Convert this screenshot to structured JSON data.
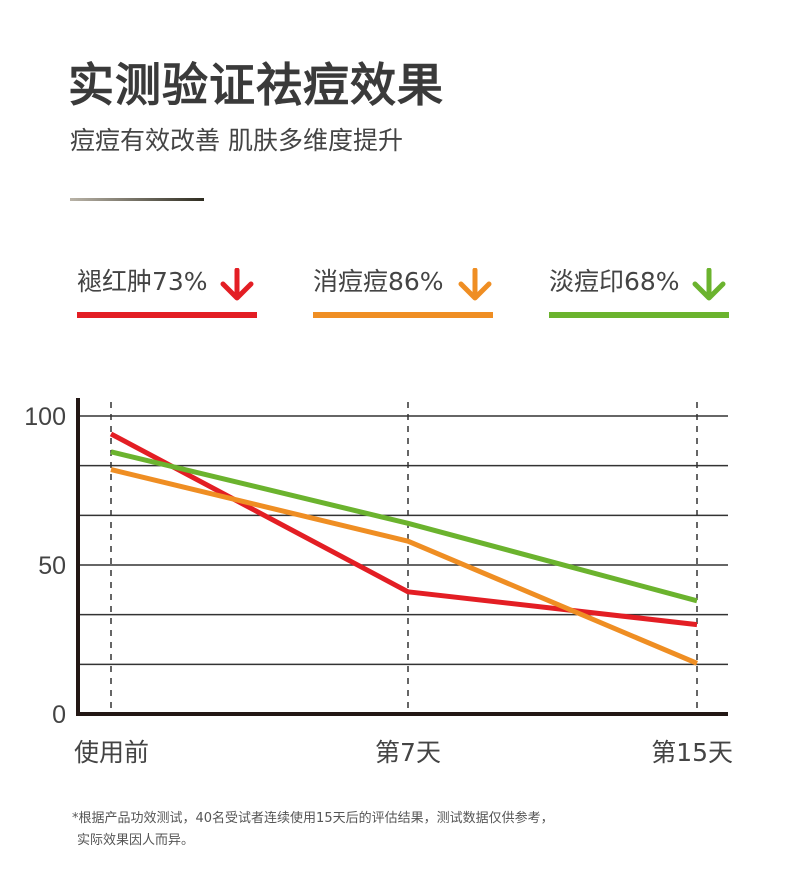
{
  "header": {
    "title": "实测验证祛痘效果",
    "subtitle": "痘痘有效改善 肌肤多维度提升"
  },
  "legend": [
    {
      "label": "褪红肿73%",
      "color": "#e31e24",
      "icon": "arrow-down-icon"
    },
    {
      "label": "消痘痘86%",
      "color": "#ef8e23",
      "icon": "arrow-down-icon"
    },
    {
      "label": "淡痘印68%",
      "color": "#6bb32e",
      "icon": "arrow-down-icon"
    }
  ],
  "chart_data": {
    "type": "line",
    "categories": [
      "使用前",
      "第7天",
      "第15天"
    ],
    "y_ticks": [
      "0",
      "50",
      "100"
    ],
    "ylim": [
      0,
      100
    ],
    "grid": true,
    "series": [
      {
        "name": "褪红肿73%",
        "color": "#e31e24",
        "values": [
          94,
          41,
          30
        ]
      },
      {
        "name": "消痘痘86%",
        "color": "#ef8e23",
        "values": [
          82,
          58,
          17
        ]
      },
      {
        "name": "淡痘印68%",
        "color": "#6bb32e",
        "values": [
          88,
          64,
          38
        ]
      }
    ]
  },
  "footnote": {
    "line1": "*根据产品功效测试，40名受试者连续使用15天后的评估结果，测试数据仅供参考，",
    "line2": "实际效果因人而异。"
  }
}
